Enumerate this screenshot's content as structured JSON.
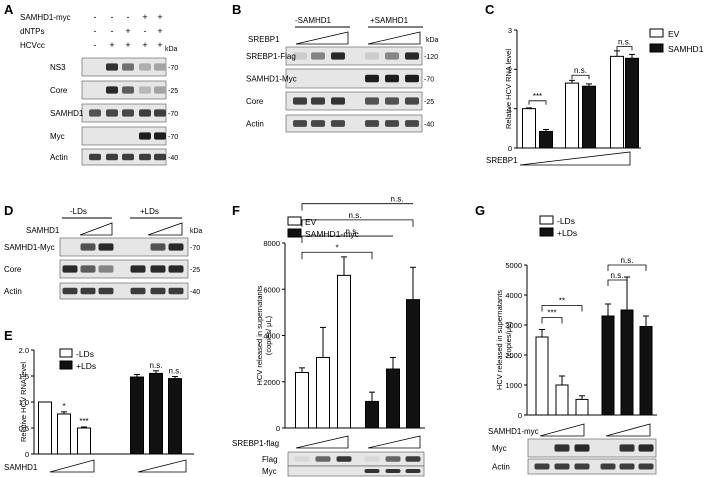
{
  "panels": {
    "A": {
      "letter": "A",
      "conditions": [
        {
          "label": "SAMHD1-myc",
          "marks": [
            "-",
            "-",
            "-",
            "+",
            "+"
          ]
        },
        {
          "label": "dNTPs",
          "marks": [
            "-",
            "-",
            "+",
            "-",
            "+"
          ]
        },
        {
          "label": "HCVcc",
          "marks": [
            "-",
            "+",
            "+",
            "+",
            "+"
          ]
        }
      ],
      "kda": "kDa",
      "blots": [
        {
          "name": "NS3",
          "mw": "70",
          "intensity": [
            0,
            0.85,
            0.55,
            0.25,
            0.3
          ]
        },
        {
          "name": "Core",
          "mw": "25",
          "intensity": [
            0,
            0.9,
            0.65,
            0.2,
            0.3
          ]
        },
        {
          "name": "SAMHD1",
          "mw": "70",
          "intensity": [
            0.7,
            0.75,
            0.75,
            0.8,
            0.8
          ]
        },
        {
          "name": "Myc",
          "mw": "70",
          "intensity": [
            0,
            0,
            0,
            0.95,
            0.95
          ]
        },
        {
          "name": "Actin",
          "mw": "40",
          "intensity": [
            0.8,
            0.8,
            0.8,
            0.8,
            0.8
          ]
        }
      ]
    },
    "B": {
      "letter": "B",
      "groups": [
        "-SAMHD1",
        "+SAMHD1"
      ],
      "treatment": "SREBP1",
      "kda": "kDa",
      "blots": [
        {
          "name": "SREBP1-Flag",
          "mw": "120",
          "intensity": [
            0.1,
            0.45,
            0.9,
            0.1,
            0.45,
            0.9
          ]
        },
        {
          "name": "SAMHD1-Myc",
          "mw": "70",
          "intensity": [
            0,
            0,
            0,
            0.95,
            0.95,
            0.95
          ]
        },
        {
          "name": "Core",
          "mw": "25",
          "intensity": [
            0.8,
            0.8,
            0.85,
            0.7,
            0.7,
            0.75
          ]
        },
        {
          "name": "Actin",
          "mw": "40",
          "intensity": [
            0.75,
            0.75,
            0.75,
            0.75,
            0.75,
            0.75
          ]
        }
      ]
    },
    "C": {
      "letter": "C",
      "treatment": "SREBP1",
      "chart_data": {
        "type": "bar",
        "ylabel": "Relative HCV RNA level",
        "ylim": [
          0,
          3
        ],
        "yticks": [
          "0",
          "1",
          "2",
          "3"
        ],
        "series": [
          {
            "name": "EV",
            "values": [
              1.0,
              1.65,
              2.33
            ]
          },
          {
            "name": "SAMHD1",
            "values": [
              0.42,
              1.57,
              2.28
            ]
          }
        ],
        "errors": [
          [
            0.02,
            0.07,
            0.14
          ],
          [
            0.05,
            0.06,
            0.1
          ]
        ],
        "significance": [
          "***",
          "n.s.",
          "n.s."
        ]
      }
    },
    "D": {
      "letter": "D",
      "groups": [
        "-LDs",
        "+LDs"
      ],
      "treatment": "SAMHD1",
      "kda": "kDa",
      "blots": [
        {
          "name": "SAMHD1-Myc",
          "mw": "70",
          "intensity": [
            0,
            0.7,
            0.9,
            0,
            0.7,
            0.9
          ]
        },
        {
          "name": "Core",
          "mw": "25",
          "intensity": [
            0.9,
            0.65,
            0.45,
            0.9,
            0.9,
            0.9
          ]
        },
        {
          "name": "Actin",
          "mw": "40",
          "intensity": [
            0.8,
            0.8,
            0.8,
            0.8,
            0.8,
            0.8
          ]
        }
      ]
    },
    "E": {
      "letter": "E",
      "treatment": "SAMHD1",
      "chart_data": {
        "type": "bar",
        "ylabel": "Relative HCV RNA level",
        "ylim": [
          0,
          2.0
        ],
        "yticks": [
          "0",
          "0.5",
          "1.0",
          "1.5",
          "2.0"
        ],
        "series": [
          {
            "name": "-LDs",
            "values": [
              1.0,
              0.77,
              0.5
            ]
          },
          {
            "name": "+LDs",
            "values": [
              1.48,
              1.55,
              1.45
            ]
          }
        ],
        "errors": [
          [
            0.0,
            0.04,
            0.02
          ],
          [
            0.05,
            0.05,
            0.04
          ]
        ],
        "significance": [
          "",
          "*",
          "***",
          "",
          "n.s.",
          "n.s."
        ]
      }
    },
    "F": {
      "letter": "F",
      "treatment": "SREBP1-flag",
      "chart_data": {
        "type": "bar",
        "ylabel": "HCV released in supernatants\n(copies/ μL)",
        "ylim": [
          0,
          8000
        ],
        "yticks": [
          "0",
          "2000",
          "4000",
          "6000",
          "8000"
        ],
        "series": [
          {
            "name": "EV",
            "values": [
              2400,
              3050,
              6600
            ]
          },
          {
            "name": "SAMHD1-myc",
            "values": [
              1150,
              2550,
              5550
            ]
          }
        ],
        "errors": [
          [
            200,
            1300,
            800
          ],
          [
            400,
            500,
            1400
          ]
        ],
        "significance": [
          "*",
          "n.s.",
          "n.s.",
          "n.s."
        ]
      },
      "blots": [
        {
          "name": "Flag",
          "intensity": [
            0.05,
            0.6,
            0.85,
            0.05,
            0.6,
            0.8
          ]
        },
        {
          "name": "Myc",
          "intensity": [
            0,
            0,
            0,
            0.85,
            0.85,
            0.85
          ]
        },
        {
          "name": "Actin",
          "intensity": [
            0.8,
            0.8,
            0.8,
            0.8,
            0.8,
            0.8
          ]
        }
      ]
    },
    "G": {
      "letter": "G",
      "treatment": "SAMHD1-myc",
      "chart_data": {
        "type": "bar",
        "ylabel": "HCV released in supernatants\n(copies/μL)",
        "ylim": [
          0,
          5000
        ],
        "yticks": [
          "0",
          "1000",
          "2000",
          "3000",
          "4000",
          "5000"
        ],
        "series": [
          {
            "name": "-LDs",
            "values": [
              2600,
              1000,
              520
            ]
          },
          {
            "name": "+LDs",
            "values": [
              3300,
              3500,
              2950
            ]
          }
        ],
        "errors": [
          [
            250,
            300,
            120
          ],
          [
            400,
            1100,
            350
          ]
        ],
        "significance": [
          "***",
          "**",
          "n.s.",
          "n.s."
        ]
      },
      "blots": [
        {
          "name": "Myc",
          "intensity": [
            0,
            0.85,
            0.9,
            0,
            0.85,
            0.9
          ]
        },
        {
          "name": "Actin",
          "intensity": [
            0.8,
            0.8,
            0.8,
            0.8,
            0.8,
            0.8
          ]
        }
      ]
    }
  }
}
